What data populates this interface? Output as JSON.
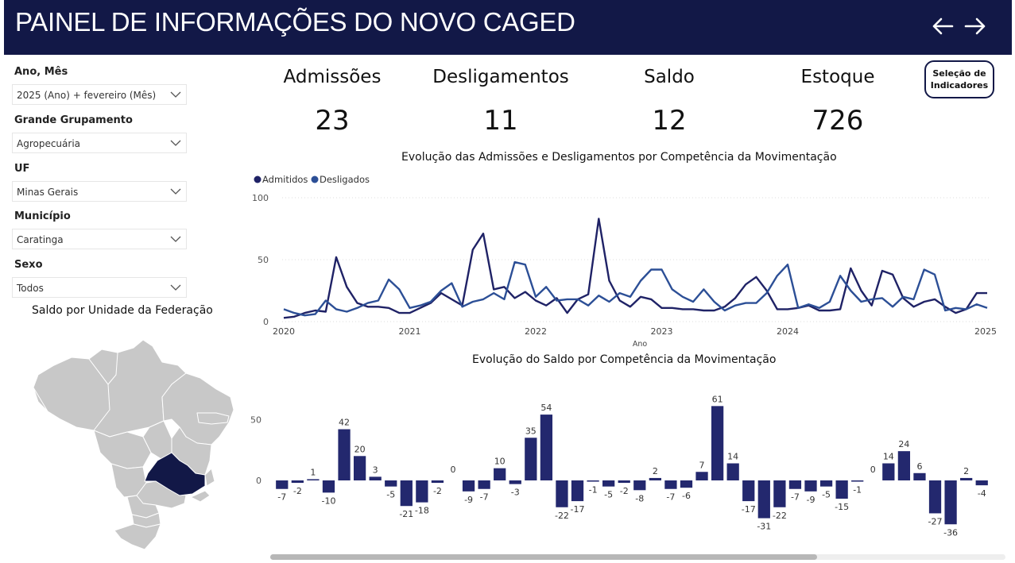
{
  "header": {
    "title": "PAINEL DE INFORMAÇÕES DO NOVO CAGED",
    "nav_back_icon": "arrow-left-icon",
    "nav_forward_icon": "arrow-right-icon"
  },
  "colors": {
    "header_bg": "#121847",
    "admitidos": "#1f2266",
    "desligados": "#2c4f96",
    "bar": "#23286e",
    "map_highlight": "#121847",
    "map_state": "#c8c8c8"
  },
  "filters": [
    {
      "label": "Ano, Mês",
      "value": "2025 (Ano) + fevereiro (Mês)"
    },
    {
      "label": "Grande Grupamento",
      "value": "Agropecuária"
    },
    {
      "label": "UF",
      "value": "Minas Gerais"
    },
    {
      "label": "Município",
      "value": "Caratinga"
    },
    {
      "label": "Sexo",
      "value": "Todos"
    }
  ],
  "map": {
    "title": "Saldo por Unidade da Federação",
    "highlighted_state": "Minas Gerais"
  },
  "kpis": [
    {
      "label": "Admissões",
      "value": "23"
    },
    {
      "label": "Desligamentos",
      "value": "11"
    },
    {
      "label": "Saldo",
      "value": "12"
    },
    {
      "label": "Estoque",
      "value": "726"
    }
  ],
  "selection_button": {
    "line1": "Seleção de",
    "line2": "Indicadores"
  },
  "chart_data": [
    {
      "type": "line",
      "title": "Evolução das Admissões e Desligamentos por Competência da Movimentação",
      "xlabel": "Ano",
      "ylabel": "",
      "ylim": [
        0,
        100
      ],
      "yticks": [
        0,
        50,
        100
      ],
      "xticks": [
        "2020",
        "2021",
        "2022",
        "2023",
        "2024",
        "2025"
      ],
      "legend": "top-left",
      "series": [
        {
          "name": "Admitidos",
          "values": [
            3,
            4,
            7,
            9,
            8,
            52,
            28,
            15,
            12,
            12,
            11,
            7,
            7,
            11,
            15,
            23,
            18,
            13,
            58,
            71,
            26,
            28,
            19,
            24,
            17,
            13,
            19,
            7,
            18,
            22,
            83,
            33,
            17,
            12,
            20,
            18,
            11,
            11,
            10,
            10,
            9,
            9,
            12,
            19,
            30,
            36,
            25,
            10,
            10,
            11,
            13,
            9,
            9,
            10,
            43,
            25,
            13,
            41,
            38,
            19,
            12,
            16,
            18,
            12,
            7,
            10,
            23,
            23
          ]
        },
        {
          "name": "Desligados",
          "values": [
            10,
            7,
            5,
            6,
            17,
            10,
            8,
            11,
            15,
            17,
            34,
            26,
            11,
            13,
            16,
            25,
            31,
            12,
            16,
            18,
            23,
            18,
            48,
            46,
            20,
            28,
            17,
            18,
            18,
            13,
            21,
            16,
            23,
            20,
            33,
            42,
            42,
            26,
            20,
            16,
            26,
            16,
            9,
            13,
            15,
            15,
            23,
            37,
            46,
            11,
            14,
            11,
            16,
            37,
            25,
            16,
            18,
            19,
            12,
            20,
            18,
            42,
            38,
            9,
            11,
            10,
            14,
            11
          ]
        }
      ]
    },
    {
      "type": "bar",
      "title": "Evolução do Saldo por Competência da Movimentação",
      "xlabel": "",
      "ylabel": "",
      "ylim": [
        -40,
        70
      ],
      "yticks": [
        0,
        50
      ],
      "values": [
        -7,
        -2,
        1,
        -10,
        42,
        20,
        3,
        -5,
        -21,
        -18,
        -2,
        0,
        -9,
        -7,
        10,
        -3,
        35,
        54,
        -22,
        -17,
        -1,
        -5,
        -2,
        -8,
        2,
        -7,
        -6,
        7,
        61,
        14,
        -17,
        -31,
        -22,
        -7,
        -9,
        -5,
        -15,
        -1,
        0,
        14,
        24,
        6,
        -27,
        -36,
        2,
        -4
      ]
    }
  ]
}
